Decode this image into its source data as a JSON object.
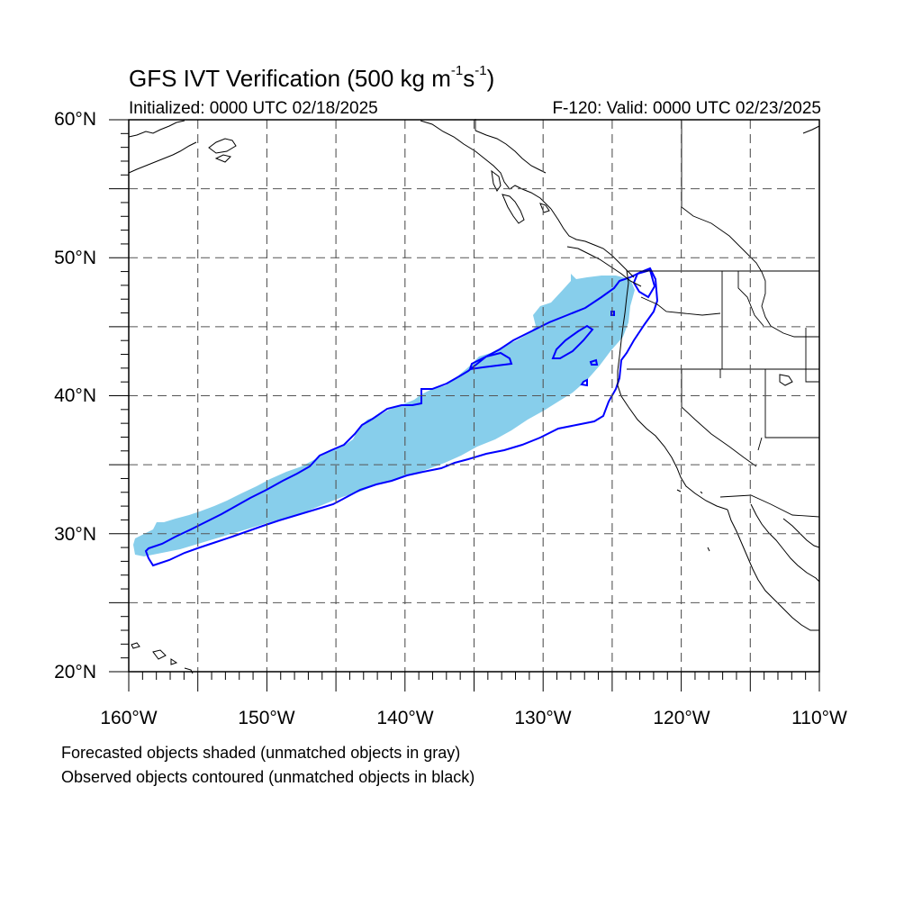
{
  "header": {
    "title_main": "GFS IVT Verification (500 kg m",
    "title_exp1": "-1",
    "title_mid": "s",
    "title_exp2": "-1",
    "title_end": ")",
    "initialized": "Initialized: 0000 UTC 02/18/2025",
    "valid": "F-120: Valid: 0000 UTC 02/23/2025"
  },
  "map": {
    "lon_range": [
      -160,
      -110
    ],
    "lat_range": [
      20,
      60
    ],
    "grid_lon_step": 5,
    "grid_lat_step": 5,
    "grid": "dashed",
    "lat_labels": [
      "60°N",
      "50°N",
      "40°N",
      "30°N",
      "20°N"
    ],
    "lon_labels": [
      "160°W",
      "150°W",
      "140°W",
      "130°W",
      "120°W",
      "110°W"
    ],
    "forecast_object_color": "#87ceeb",
    "observed_object_color": "#0000ff",
    "coastline_color": "#000000"
  },
  "legend": {
    "line1": "Forecasted objects shaded (unmatched objects in gray)",
    "line2": "Observed objects contoured (unmatched objects in black)"
  }
}
